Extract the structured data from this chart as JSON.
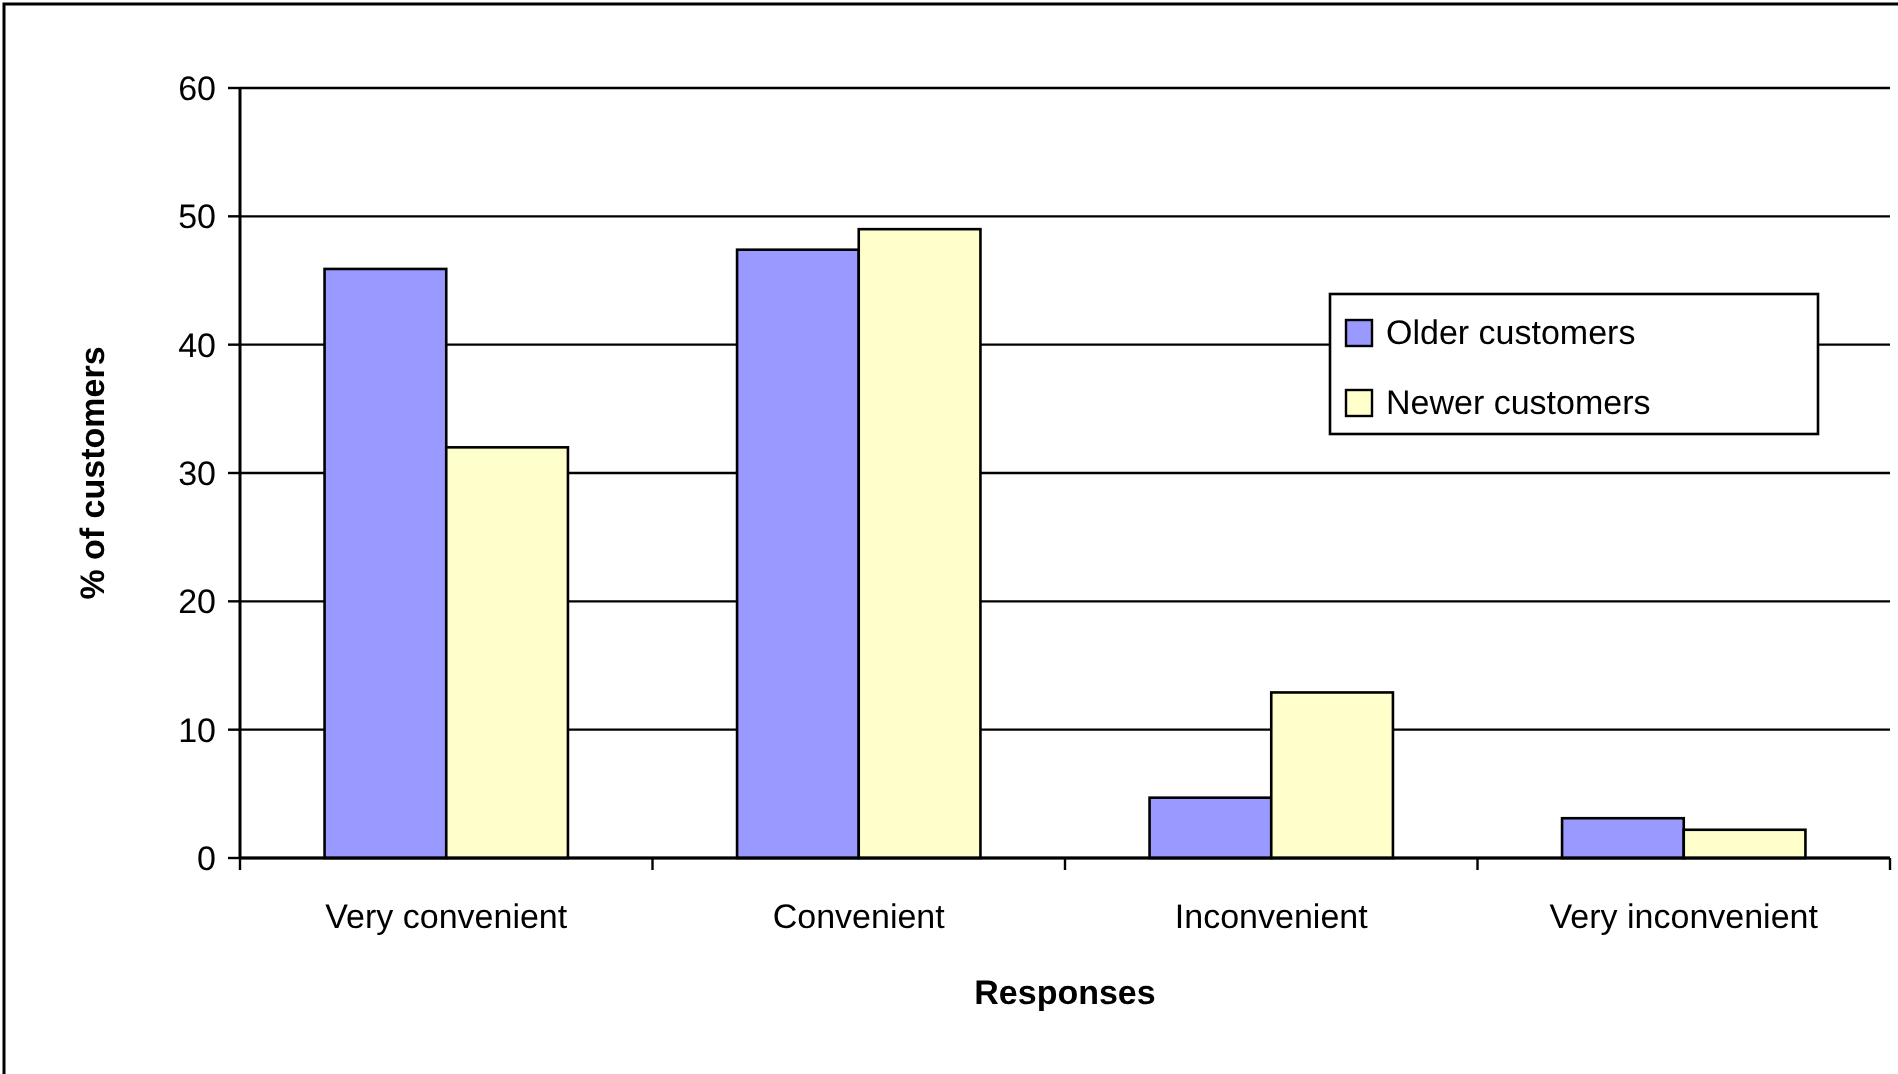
{
  "chart_data": {
    "type": "bar",
    "xlabel": "Responses",
    "ylabel": "% of customers",
    "categories": [
      "Very convenient",
      "Convenient",
      "Inconvenient",
      "Very inconvenient"
    ],
    "series": [
      {
        "name": "Older customers",
        "color": "#9999ff",
        "values": [
          45.9,
          47.4,
          4.7,
          3.1
        ]
      },
      {
        "name": "Newer customers",
        "color": "#ffffcc",
        "values": [
          32,
          49,
          12.9,
          2.2
        ]
      }
    ],
    "ylim": [
      0,
      60
    ],
    "yticks": [
      0,
      10,
      20,
      30,
      40,
      50,
      60
    ],
    "grid": "y",
    "legend": "right"
  }
}
